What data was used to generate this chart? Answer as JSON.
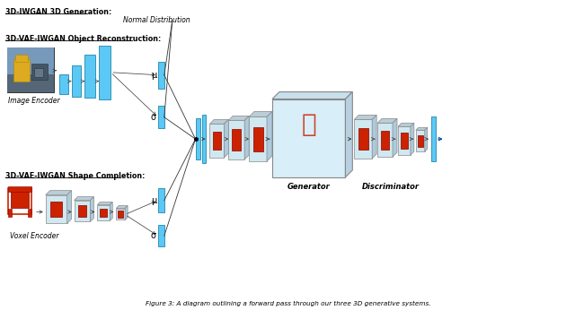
{
  "title": "Figure 3: A diagram outlining a forward pass through our three 3D generative systems.",
  "bg_color": "#ffffff",
  "label_3diwgan": "3D-IWGAN 3D Generation:",
  "label_vae_obj": "3D-VAE-IWGAN Object Reconstruction:",
  "label_vae_shape": "3D-VAE-IWGAN Shape Completion:",
  "label_normal_dist": "Normal Distribution",
  "label_image_encoder": "Image Encoder",
  "label_voxel_encoder": "Voxel Encoder",
  "label_generator": "Generator",
  "label_discriminator": "Discriminator",
  "label_mu1": "μ",
  "label_sigma1": "σ",
  "label_mu2": "μ",
  "label_sigma2": "σ",
  "cyan": "#5BC8F5",
  "light_blue": "#D0E8F0",
  "light_blue2": "#C8DFF0",
  "red": "#CC2200",
  "gray_edge": "#888888",
  "dark_edge": "#555555"
}
